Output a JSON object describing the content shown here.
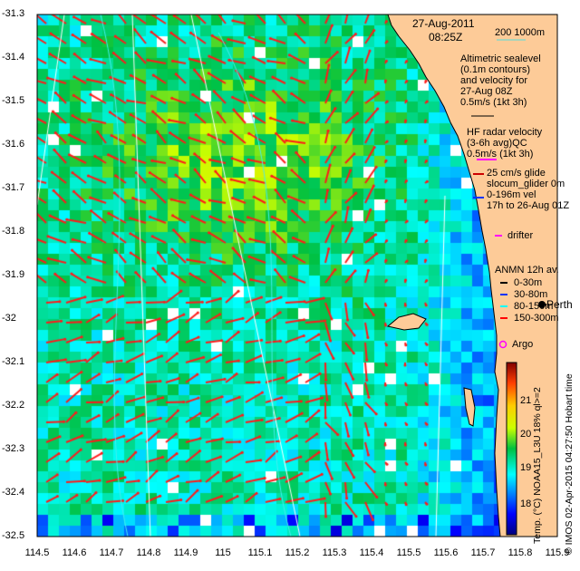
{
  "map": {
    "date": "27-Aug-2011",
    "time": "08:25Z",
    "scale_label": "200  1000m",
    "lon_ticks": [
      "114.5",
      "114.6",
      "114.7",
      "114.8",
      "114.9",
      "115",
      "115.1",
      "115.2",
      "115.3",
      "115.4",
      "115.5",
      "115.6",
      "115.7",
      "115.8",
      "115.9"
    ],
    "lat_ticks": [
      "-31.3",
      "-31.4",
      "-31.5",
      "-31.6",
      "-31.7",
      "-31.8",
      "-31.9",
      "-32",
      "-32.1",
      "-32.2",
      "-32.3",
      "-32.4",
      "-32.5"
    ],
    "lon_range": [
      114.5,
      115.9
    ],
    "lat_range": [
      -32.5,
      -31.3
    ],
    "place_label": "Perth"
  },
  "legend": {
    "altimetry": [
      "Altimetric sealevel",
      "(0.1m contours)",
      "and velocity for",
      "27-Aug 08Z",
      "0.5m/s (1kt 3h)"
    ],
    "hf_radar": [
      "HF radar velocity",
      "(3-6h avg)QC",
      "0.5m/s (1kt 3h)"
    ],
    "glider": [
      "25 cm/s glide",
      "slocum_glider 0m",
      "0-196m vel",
      "17h to 26-Aug 01Z"
    ],
    "drifter": "drifter",
    "anmn_title": "ANMN 12h av.",
    "anmn": [
      "0-30m",
      "30-80m",
      "80-150m",
      "150-300m"
    ],
    "argo": "Argo",
    "colors": {
      "land": "#fdcb98",
      "hf_arrow": "#ff1a1a",
      "glider": "#cc0000",
      "drifter": "#ff00ff",
      "anmn": [
        "#000000",
        "#0033ff",
        "#00ffff",
        "#ff0000"
      ]
    }
  },
  "colorbar": {
    "label": "Temp. (°C) NOAA15_L3U 18% ql>=2",
    "ticks": [
      "18",
      "19",
      "20",
      "21"
    ],
    "range": [
      17.1,
      22.05
    ]
  },
  "credit": "© IMOS 02-Apr-2015 04:27:50 Hobart time"
}
